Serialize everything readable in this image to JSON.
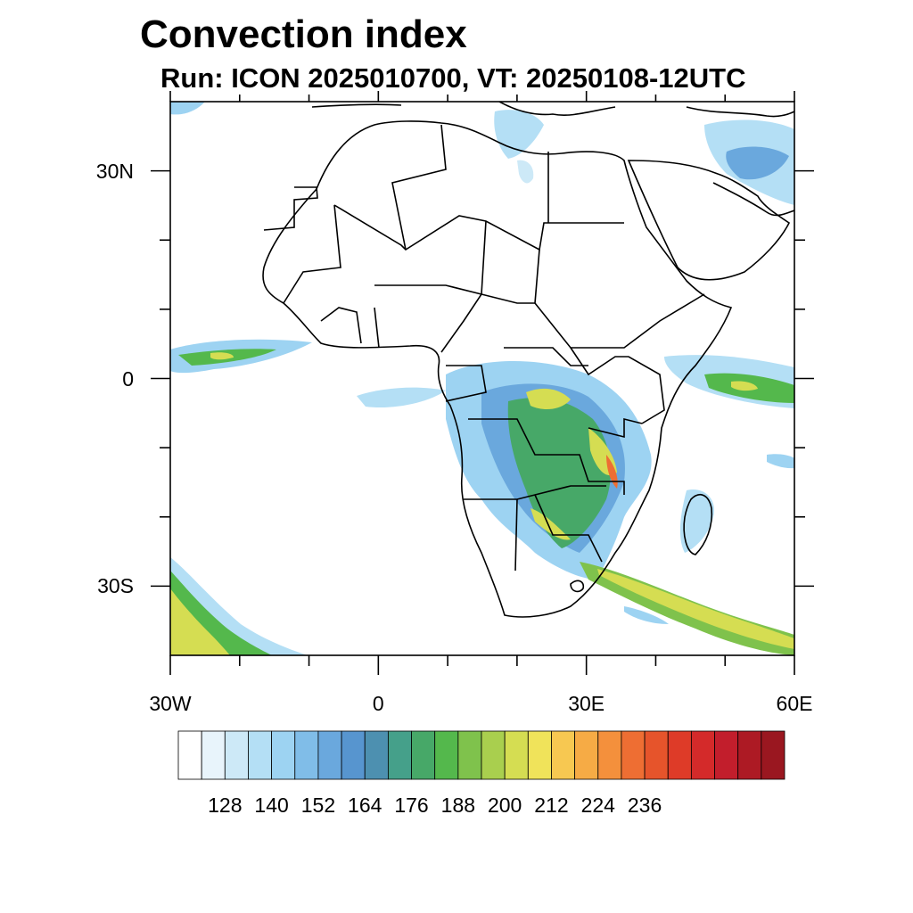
{
  "title": "Convection index",
  "subtitle": "Run: ICON 2025010700,  VT: 20250108-12UTC",
  "map": {
    "lon_range": [
      -30,
      60
    ],
    "lat_range": [
      -40,
      40
    ],
    "lat_ticks": [
      {
        "value": 30,
        "label": "30N"
      },
      {
        "value": 0,
        "label": "0"
      },
      {
        "value": -30,
        "label": "30S"
      }
    ],
    "lon_ticks": [
      {
        "value": -30,
        "label": "30W"
      },
      {
        "value": 0,
        "label": "0"
      },
      {
        "value": 30,
        "label": "30E"
      },
      {
        "value": 60,
        "label": "60E"
      }
    ],
    "minor_lon_ticks": [
      -20,
      -10,
      10,
      20,
      40,
      50
    ],
    "minor_lat_ticks": [
      20,
      10,
      -10,
      -20
    ]
  },
  "colorbar": {
    "colors": [
      "#ffffff",
      "#e8f4fb",
      "#cde9f7",
      "#b4dff5",
      "#9dd3f2",
      "#80bde8",
      "#6aa8dd",
      "#5795cf",
      "#4d90b0",
      "#45a08a",
      "#47a868",
      "#54b84c",
      "#7fc24c",
      "#a9cf4e",
      "#d5dd52",
      "#f0e35a",
      "#f7c851",
      "#f6ab45",
      "#f4903c",
      "#ee6e33",
      "#e6542b",
      "#de3b28",
      "#d42a2a",
      "#c21e2c",
      "#ad1a24",
      "#9a1720"
    ],
    "labels": [
      "128",
      "140",
      "152",
      "164",
      "176",
      "188",
      "200",
      "212",
      "224",
      "236"
    ],
    "label_positions": [
      2,
      4,
      6,
      8,
      10,
      12,
      14,
      16,
      18,
      20
    ]
  }
}
